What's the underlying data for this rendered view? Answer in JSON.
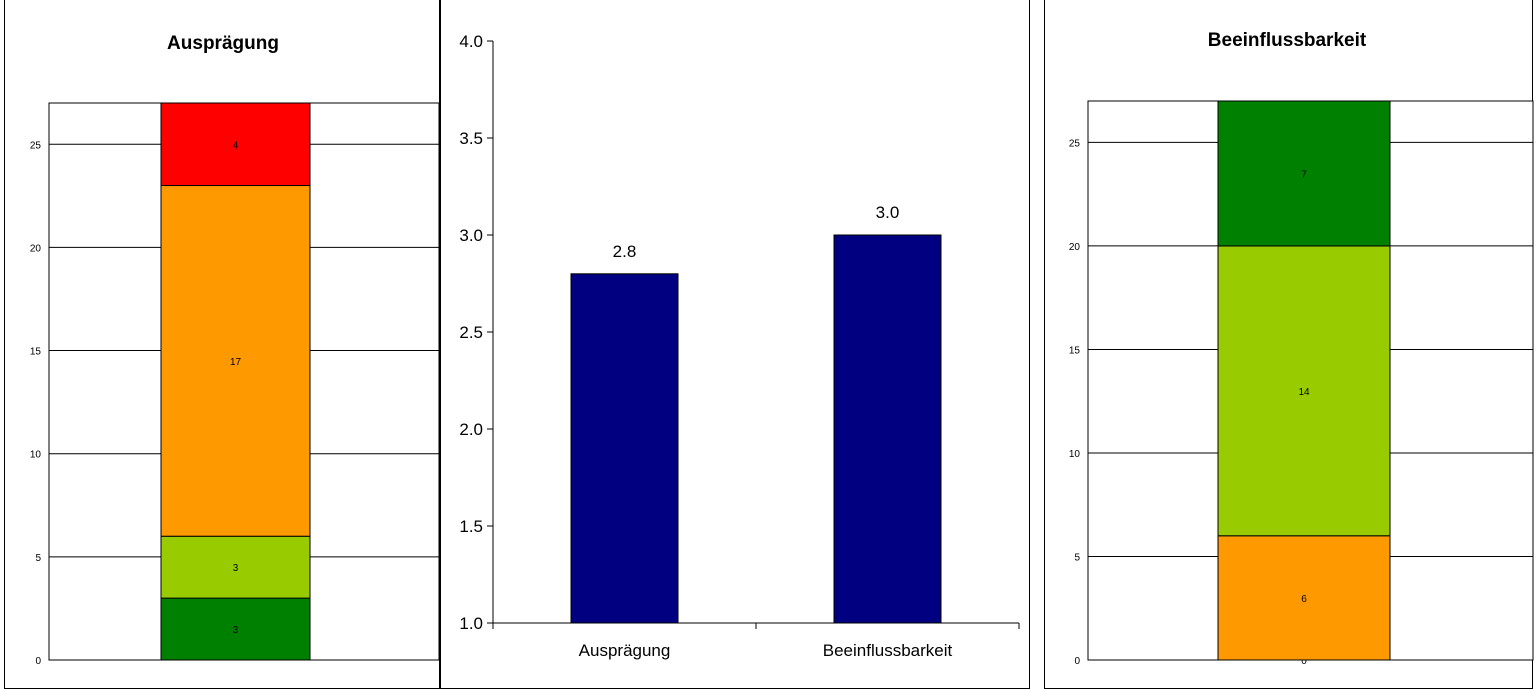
{
  "chart_data": [
    {
      "type": "bar",
      "stacked": true,
      "title": "Ausprägung",
      "ylim": [
        0,
        27
      ],
      "yticks": [
        0,
        5,
        10,
        15,
        20,
        25
      ],
      "grid": true,
      "segments": [
        {
          "value": 3,
          "label": "3",
          "color": "#008000"
        },
        {
          "value": 3,
          "label": "3",
          "color": "#99CC00"
        },
        {
          "value": 17,
          "label": "17",
          "color": "#FF9900"
        },
        {
          "value": 4,
          "label": "4",
          "color": "#FF0000"
        }
      ]
    },
    {
      "type": "bar",
      "title": "",
      "categories": [
        "Ausprägung",
        "Beeinflussbarkeit"
      ],
      "values": [
        2.8,
        3.0
      ],
      "data_labels": [
        "2.8",
        "3.0"
      ],
      "ylim": [
        1.0,
        4.0
      ],
      "yticks": [
        "1.0",
        "1.5",
        "2.0",
        "2.5",
        "3.0",
        "3.5",
        "4.0"
      ],
      "bar_color": "#000080",
      "grid": false
    },
    {
      "type": "bar",
      "stacked": true,
      "title": "Beeinflussbarkeit",
      "ylim": [
        0,
        27
      ],
      "yticks": [
        0,
        5,
        10,
        15,
        20,
        25
      ],
      "grid": true,
      "segments": [
        {
          "value": 0,
          "label": "0",
          "color": "#FF0000"
        },
        {
          "value": 6,
          "label": "6",
          "color": "#FF9900"
        },
        {
          "value": 14,
          "label": "14",
          "color": "#99CC00"
        },
        {
          "value": 7,
          "label": "7",
          "color": "#008000"
        }
      ]
    }
  ]
}
